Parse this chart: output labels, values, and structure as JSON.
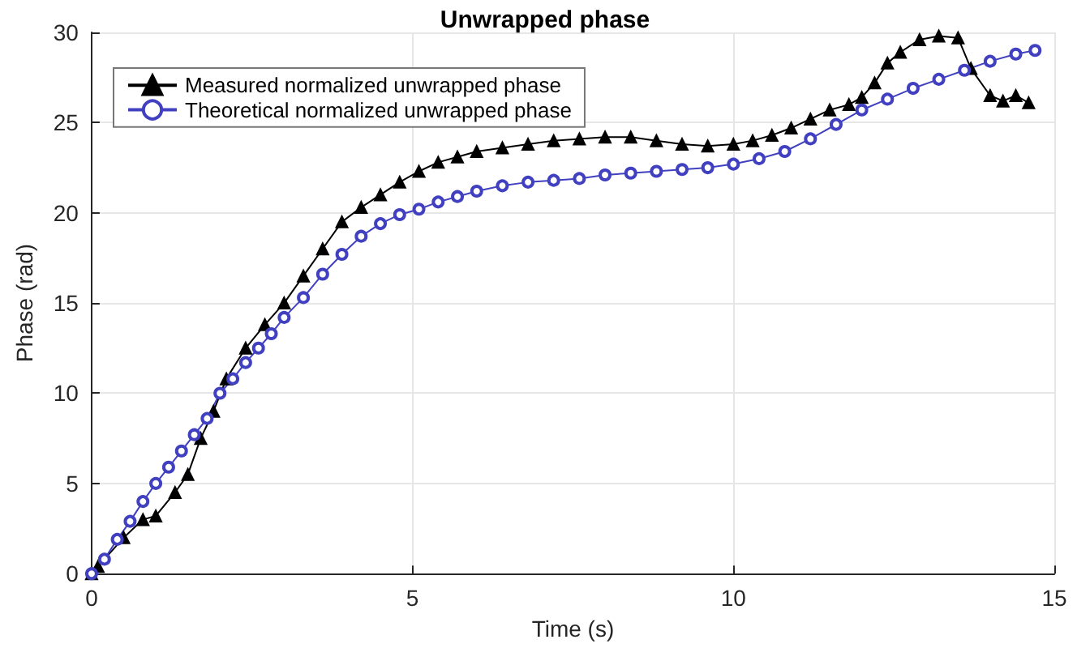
{
  "chart_data": {
    "type": "line",
    "title": "Unwrapped phase",
    "xlabel": "Time (s)",
    "ylabel": "Phase (rad)",
    "xlim": [
      0,
      15
    ],
    "xticks": [
      0,
      5,
      10,
      15
    ],
    "ylim": [
      0,
      30
    ],
    "yticks": [
      0,
      5,
      10,
      15,
      20,
      25,
      30
    ],
    "grid": true,
    "legend": "top left",
    "line_style": "solid",
    "series": [
      {
        "name": "Measured normalized unwrapped phase",
        "color": "#000000",
        "marker": "triangle",
        "x": [
          0,
          0.1,
          0.5,
          0.8,
          1.0,
          1.3,
          1.5,
          1.7,
          1.9,
          2.1,
          2.4,
          2.7,
          3.0,
          3.3,
          3.6,
          3.9,
          4.2,
          4.5,
          4.8,
          5.1,
          5.4,
          5.7,
          6.0,
          6.4,
          6.8,
          7.2,
          7.6,
          8.0,
          8.4,
          8.8,
          9.2,
          9.6,
          10.0,
          10.3,
          10.6,
          10.9,
          11.2,
          11.5,
          11.8,
          12.0,
          12.2,
          12.4,
          12.6,
          12.9,
          13.2,
          13.5,
          13.7,
          14.0,
          14.2,
          14.4,
          14.6
        ],
        "values": [
          0,
          0.4,
          2.0,
          3.0,
          3.2,
          4.5,
          5.5,
          7.5,
          9.0,
          10.8,
          12.5,
          13.8,
          15.0,
          16.5,
          18.0,
          19.5,
          20.3,
          21.0,
          21.7,
          22.3,
          22.8,
          23.1,
          23.4,
          23.6,
          23.8,
          24.0,
          24.1,
          24.2,
          24.2,
          24.0,
          23.8,
          23.7,
          23.8,
          24.0,
          24.3,
          24.7,
          25.2,
          25.7,
          26.0,
          26.4,
          27.2,
          28.3,
          28.9,
          29.6,
          29.8,
          29.7,
          28.0,
          26.5,
          26.2,
          26.5,
          26.1
        ]
      },
      {
        "name": "Theoretical normalized unwrapped phase",
        "color": "#4040c0",
        "marker": "circle",
        "x": [
          0,
          0.2,
          0.4,
          0.6,
          0.8,
          1.0,
          1.2,
          1.4,
          1.6,
          1.8,
          2.0,
          2.2,
          2.4,
          2.6,
          2.8,
          3.0,
          3.3,
          3.6,
          3.9,
          4.2,
          4.5,
          4.8,
          5.1,
          5.4,
          5.7,
          6.0,
          6.4,
          6.8,
          7.2,
          7.6,
          8.0,
          8.4,
          8.8,
          9.2,
          9.6,
          10.0,
          10.4,
          10.8,
          11.2,
          11.6,
          12.0,
          12.4,
          12.8,
          13.2,
          13.6,
          14.0,
          14.4,
          14.7
        ],
        "values": [
          0,
          0.8,
          1.9,
          2.9,
          4.0,
          5.0,
          5.9,
          6.8,
          7.7,
          8.6,
          10.0,
          10.8,
          11.7,
          12.5,
          13.3,
          14.2,
          15.3,
          16.6,
          17.7,
          18.7,
          19.4,
          19.9,
          20.2,
          20.6,
          20.9,
          21.2,
          21.5,
          21.7,
          21.8,
          21.9,
          22.1,
          22.2,
          22.3,
          22.4,
          22.5,
          22.7,
          23.0,
          23.4,
          24.1,
          24.9,
          25.7,
          26.3,
          26.9,
          27.4,
          27.9,
          28.4,
          28.8,
          29.0
        ]
      }
    ]
  }
}
